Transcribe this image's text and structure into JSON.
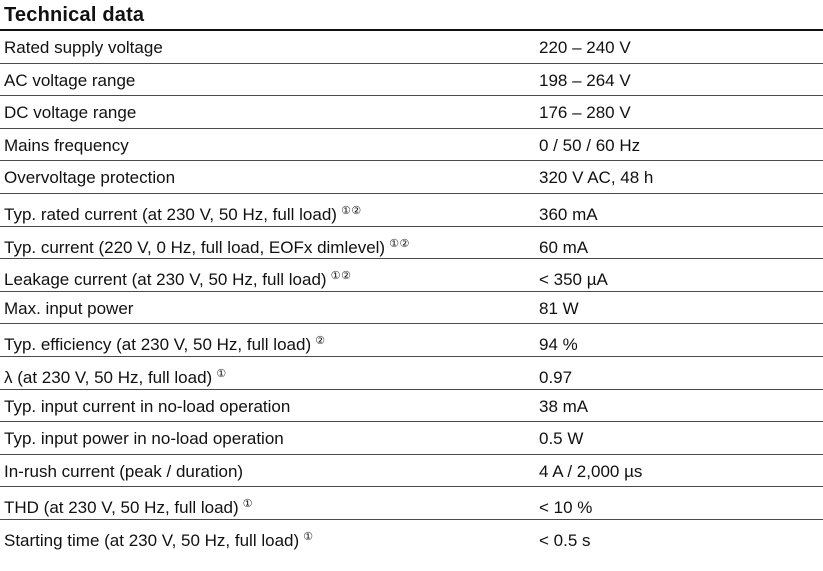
{
  "title": "Technical data",
  "rows": [
    {
      "label": "Rated supply voltage",
      "note": "",
      "value": "220 – 240 V"
    },
    {
      "label": "AC voltage range",
      "note": "",
      "value": "198 – 264 V"
    },
    {
      "label": "DC voltage range",
      "note": "",
      "value": "176 – 280 V"
    },
    {
      "label": "Mains frequency",
      "note": "",
      "value": "0 / 50 / 60 Hz"
    },
    {
      "label": "Overvoltage protection",
      "note": "",
      "value": "320 V AC, 48 h"
    },
    {
      "label": "Typ. rated current (at 230 V, 50 Hz, full load)",
      "note": "①②",
      "value": "360 mA"
    },
    {
      "label": "Typ. current (220 V, 0 Hz, full load, EOFx dimlevel)",
      "note": "①②",
      "value": "60 mA"
    },
    {
      "label": "Leakage current (at 230 V, 50 Hz, full load)",
      "note": "①②",
      "value": "< 350 µA"
    },
    {
      "label": "Max. input power",
      "note": "",
      "value": "81 W"
    },
    {
      "label": "Typ. efficiency (at 230 V, 50 Hz, full load)",
      "note": "②",
      "value": "94 %"
    },
    {
      "label": "λ (at 230 V, 50 Hz, full load)",
      "note": "①",
      "value": "0.97"
    },
    {
      "label": "Typ. input current in no-load operation",
      "note": "",
      "value": "38 mA"
    },
    {
      "label": "Typ. input power in no-load operation",
      "note": "",
      "value": "0.5 W"
    },
    {
      "label": "In-rush current (peak / duration)",
      "note": "",
      "value": "4 A / 2,000 µs"
    },
    {
      "label": "THD (at 230 V, 50 Hz, full load)",
      "note": "①",
      "value": "< 10 %"
    },
    {
      "label": "Starting time (at 230 V, 50 Hz, full load)",
      "note": "①",
      "value": "< 0.5 s"
    }
  ]
}
